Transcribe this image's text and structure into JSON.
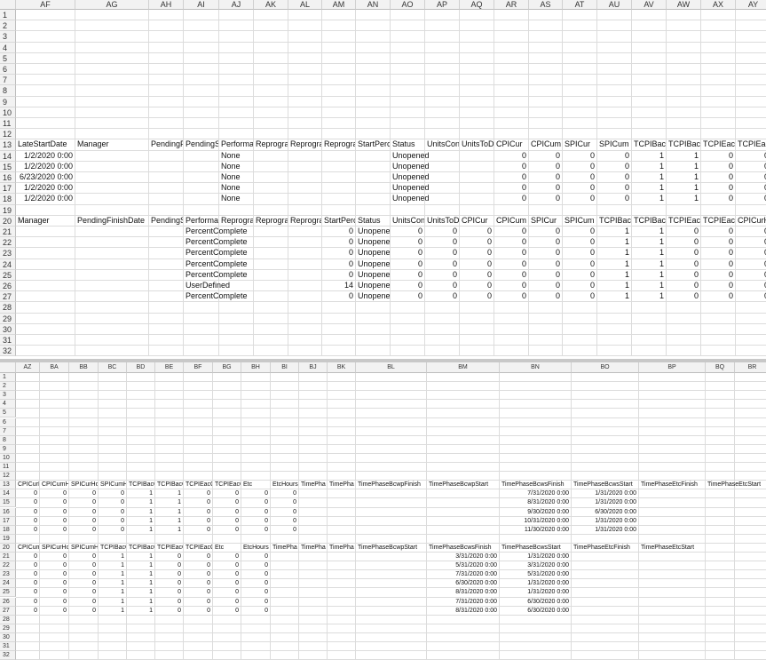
{
  "top_pane": {
    "columns": [
      "AF",
      "AG",
      "AH",
      "AI",
      "AJ",
      "AK",
      "AL",
      "AM",
      "AN",
      "AO",
      "AP",
      "AQ",
      "AR",
      "AS",
      "AT",
      "AU",
      "AV",
      "AW",
      "AX",
      "AY"
    ],
    "row_numbers": [
      1,
      2,
      3,
      4,
      5,
      6,
      7,
      8,
      9,
      10,
      11,
      12,
      13,
      14,
      15,
      16,
      17,
      18,
      19,
      20,
      21,
      22,
      23,
      24,
      25,
      26,
      27,
      28,
      29,
      30,
      31,
      32
    ],
    "rows": [
      null,
      null,
      null,
      null,
      null,
      null,
      null,
      null,
      null,
      null,
      null,
      null,
      [
        "LateStartDate",
        "Manager",
        "PendingF",
        "PendingS",
        "Performa",
        "Reprogra",
        "Reprogra",
        "Reprogra",
        "StartPerc",
        "Status",
        "UnitsCon",
        "UnitsToD",
        "CPICur",
        "CPICum",
        "SPICur",
        "SPICum",
        "TCPIBacC",
        "TCPIBacC",
        "TCPIEacC",
        "TCPIEacC"
      ],
      [
        "1/2/2020 0:00",
        null,
        null,
        null,
        "None",
        null,
        null,
        null,
        null,
        "Unopened",
        null,
        null,
        0,
        0,
        0,
        0,
        1,
        1,
        0,
        0
      ],
      [
        "1/2/2020 0:00",
        null,
        null,
        null,
        "None",
        null,
        null,
        null,
        null,
        "Unopened",
        null,
        null,
        0,
        0,
        0,
        0,
        1,
        1,
        0,
        0
      ],
      [
        "6/23/2020 0:00",
        null,
        null,
        null,
        "None",
        null,
        null,
        null,
        null,
        "Unopened",
        null,
        null,
        0,
        0,
        0,
        0,
        1,
        1,
        0,
        0
      ],
      [
        "1/2/2020 0:00",
        null,
        null,
        null,
        "None",
        null,
        null,
        null,
        null,
        "Unopened",
        null,
        null,
        0,
        0,
        0,
        0,
        1,
        1,
        0,
        0
      ],
      [
        "1/2/2020 0:00",
        null,
        null,
        null,
        "None",
        null,
        null,
        null,
        null,
        "Unopened",
        null,
        null,
        0,
        0,
        0,
        0,
        1,
        1,
        0,
        0
      ],
      null,
      [
        "Manager",
        "PendingFinishDate",
        "PendingS",
        "Performa",
        "Reprogra",
        "Reprogra",
        "Reprogra",
        "StartPerc",
        "Status",
        "UnitsCon",
        "UnitsToD",
        "CPICur",
        "CPICum",
        "SPICur",
        "SPICum",
        "TCPIBacC",
        "TCPIBacC",
        "TCPIEacC",
        "TCPIEacC",
        "CPICurHo"
      ],
      [
        null,
        null,
        null,
        "PercentComplete",
        null,
        null,
        null,
        0,
        "Unopene",
        0,
        0,
        0,
        0,
        0,
        0,
        1,
        1,
        0,
        0,
        0
      ],
      [
        null,
        null,
        null,
        "PercentComplete",
        null,
        null,
        null,
        0,
        "Unopene",
        0,
        0,
        0,
        0,
        0,
        0,
        1,
        1,
        0,
        0,
        0
      ],
      [
        null,
        null,
        null,
        "PercentComplete",
        null,
        null,
        null,
        0,
        "Unopene",
        0,
        0,
        0,
        0,
        0,
        0,
        1,
        1,
        0,
        0,
        0
      ],
      [
        null,
        null,
        null,
        "PercentComplete",
        null,
        null,
        null,
        0,
        "Unopene",
        0,
        0,
        0,
        0,
        0,
        0,
        1,
        1,
        0,
        0,
        0
      ],
      [
        null,
        null,
        null,
        "PercentComplete",
        null,
        null,
        null,
        0,
        "Unopene",
        0,
        0,
        0,
        0,
        0,
        0,
        1,
        1,
        0,
        0,
        0
      ],
      [
        null,
        null,
        null,
        "UserDefined",
        null,
        null,
        null,
        14,
        "Unopene",
        0,
        0,
        0,
        0,
        0,
        0,
        1,
        1,
        0,
        0,
        0
      ],
      [
        null,
        null,
        null,
        "PercentComplete",
        null,
        null,
        null,
        0,
        "Unopene",
        0,
        0,
        0,
        0,
        0,
        0,
        1,
        1,
        0,
        0,
        0
      ],
      null,
      null,
      null,
      null,
      null
    ]
  },
  "bottom_pane": {
    "columns": [
      "AZ",
      "BA",
      "BB",
      "BC",
      "BD",
      "BE",
      "BF",
      "BG",
      "BH",
      "BI",
      "BJ",
      "BK",
      "BL",
      "BM",
      "BN",
      "BO",
      "BP",
      "BQ",
      "BR"
    ],
    "row_numbers": [
      1,
      2,
      3,
      4,
      5,
      6,
      7,
      8,
      9,
      10,
      11,
      12,
      13,
      14,
      15,
      16,
      17,
      18,
      19,
      20,
      21,
      22,
      23,
      24,
      25,
      26,
      27,
      28,
      29,
      30,
      31,
      32
    ],
    "rows": [
      null,
      null,
      null,
      null,
      null,
      null,
      null,
      null,
      null,
      null,
      null,
      null,
      [
        "CPICurHo",
        "CPICumH",
        "SPICurHo",
        "SPICumH",
        "TCPIBacC",
        "TCPIBacC",
        "TCPIEacC",
        "TCPIEacC",
        "Etc",
        "EtcHours",
        "TimePha",
        "TimePha",
        "TimePhaseBcwpFinish",
        "TimePhaseBcwpStart",
        "TimePhaseBcwsFinish",
        "TimePhaseBcwsStart",
        "TimePhaseEtcFinish",
        "TimePhaseEtcStart",
        null
      ],
      [
        0,
        0,
        0,
        0,
        1,
        1,
        0,
        0,
        0,
        0,
        null,
        null,
        null,
        null,
        "7/31/2020 0:00",
        "1/31/2020 0:00",
        null,
        null,
        null
      ],
      [
        0,
        0,
        0,
        0,
        1,
        1,
        0,
        0,
        0,
        0,
        null,
        null,
        null,
        null,
        "8/31/2020 0:00",
        "1/31/2020 0:00",
        null,
        null,
        null
      ],
      [
        0,
        0,
        0,
        0,
        1,
        1,
        0,
        0,
        0,
        0,
        null,
        null,
        null,
        null,
        "9/30/2020 0:00",
        "6/30/2020 0:00",
        null,
        null,
        null
      ],
      [
        0,
        0,
        0,
        0,
        1,
        1,
        0,
        0,
        0,
        0,
        null,
        null,
        null,
        null,
        "10/31/2020 0:00",
        "1/31/2020 0:00",
        null,
        null,
        null
      ],
      [
        0,
        0,
        0,
        0,
        1,
        1,
        0,
        0,
        0,
        0,
        null,
        null,
        null,
        null,
        "11/30/2020 0:00",
        "1/31/2020 0:00",
        null,
        null,
        null
      ],
      null,
      [
        "CPICumH",
        "SPICurHo",
        "SPICumH",
        "TCPIBacC",
        "TCPIBacC",
        "TCPIEacC",
        "TCPIEacC",
        "Etc",
        "EtcHours",
        "TimePha",
        "TimePha",
        "TimePha",
        "TimePhaseBcwpStart",
        "TimePhaseBcwsFinish",
        "TimePhaseBcwsStart",
        "TimePhaseEtcFinish",
        "TimePhaseEtcStart",
        null,
        null
      ],
      [
        0,
        0,
        0,
        1,
        1,
        0,
        0,
        0,
        0,
        null,
        null,
        null,
        null,
        "3/31/2020 0:00",
        "1/31/2020 0:00",
        null,
        null,
        null,
        null
      ],
      [
        0,
        0,
        0,
        1,
        1,
        0,
        0,
        0,
        0,
        null,
        null,
        null,
        null,
        "5/31/2020 0:00",
        "3/31/2020 0:00",
        null,
        null,
        null,
        null
      ],
      [
        0,
        0,
        0,
        1,
        1,
        0,
        0,
        0,
        0,
        null,
        null,
        null,
        null,
        "7/31/2020 0:00",
        "5/31/2020 0:00",
        null,
        null,
        null,
        null
      ],
      [
        0,
        0,
        0,
        1,
        1,
        0,
        0,
        0,
        0,
        null,
        null,
        null,
        null,
        "6/30/2020 0:00",
        "1/31/2020 0:00",
        null,
        null,
        null,
        null
      ],
      [
        0,
        0,
        0,
        1,
        1,
        0,
        0,
        0,
        0,
        null,
        null,
        null,
        null,
        "8/31/2020 0:00",
        "1/31/2020 0:00",
        null,
        null,
        null,
        null
      ],
      [
        0,
        0,
        0,
        1,
        1,
        0,
        0,
        0,
        0,
        null,
        null,
        null,
        null,
        "7/31/2020 0:00",
        "6/30/2020 0:00",
        null,
        null,
        null,
        null
      ],
      [
        0,
        0,
        0,
        1,
        1,
        0,
        0,
        0,
        0,
        null,
        null,
        null,
        null,
        "8/31/2020 0:00",
        "6/30/2020 0:00",
        null,
        null,
        null,
        null
      ],
      null,
      null,
      null,
      null,
      null
    ]
  }
}
